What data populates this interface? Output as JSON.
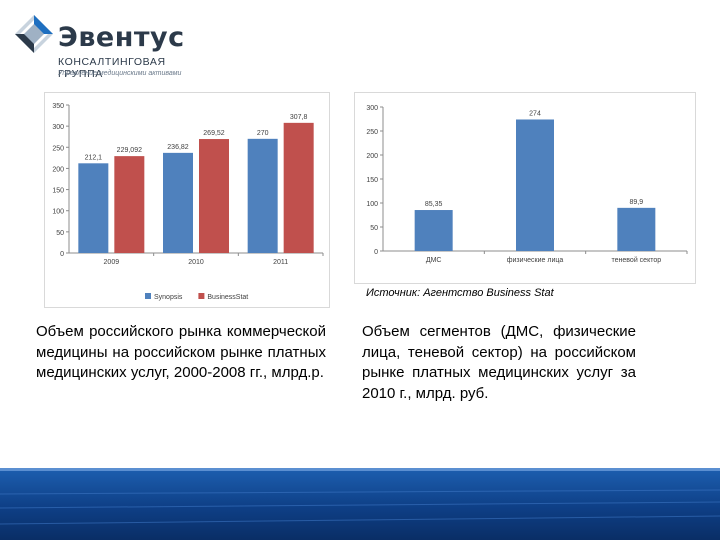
{
  "brand": {
    "name": "Эвентус",
    "subtitle": "КОНСАЛТИНГОВАЯ ГРУППА",
    "tagline": "Управление медицинскими активами",
    "colors": {
      "dark": "#2c3a4a",
      "accent_blue": "#1e6fc0"
    }
  },
  "source": "Источник: Агентство Business Stat",
  "captions": [
    "Объем российского рынка коммерческой медицины на российском рынке платных медицинских услуг, 2000-2008 гг., млрд.р.",
    "Объем сегментов (ДМС, физические лица, теневой сектор) на российском рынке платных медицинских услуг за 2010 г., млрд. руб."
  ],
  "chart_data": [
    {
      "type": "bar",
      "categories": [
        "2009",
        "2010",
        "2011"
      ],
      "series": [
        {
          "name": "Synopsis",
          "values": [
            212.1,
            236.82,
            270
          ],
          "labels": [
            "212,1",
            "236,82",
            "270"
          ],
          "color": "#4f81bd"
        },
        {
          "name": "BusinessStat",
          "values": [
            229.092,
            269.52,
            307.8
          ],
          "labels": [
            "229,092",
            "269,52",
            "307,8"
          ],
          "color": "#c0504d"
        }
      ],
      "ylim": [
        0,
        350
      ],
      "yticks": [
        0,
        50,
        100,
        150,
        200,
        250,
        300,
        350
      ],
      "grid": false,
      "legend": "bottom"
    },
    {
      "type": "bar",
      "categories": [
        "ДМС",
        "физические лица",
        "теневой сектор"
      ],
      "series": [
        {
          "values": [
            85.35,
            274,
            89.9
          ],
          "labels": [
            "85,35",
            "274",
            "89,9"
          ],
          "color": "#4f81bd"
        }
      ],
      "ylim": [
        0,
        300
      ],
      "yticks": [
        0,
        50,
        100,
        150,
        200,
        250,
        300
      ],
      "grid": false,
      "legend": "none"
    }
  ]
}
